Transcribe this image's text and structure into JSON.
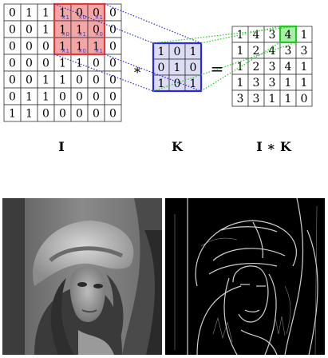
{
  "diagram": {
    "input_matrix": [
      [
        "0",
        "1",
        "1",
        "1",
        "0",
        "0",
        "0"
      ],
      [
        "0",
        "0",
        "1",
        "1",
        "1",
        "0",
        "0"
      ],
      [
        "0",
        "0",
        "0",
        "1",
        "1",
        "1",
        "0"
      ],
      [
        "0",
        "0",
        "0",
        "1",
        "1",
        "0",
        "0"
      ],
      [
        "0",
        "0",
        "1",
        "1",
        "0",
        "0",
        "0"
      ],
      [
        "0",
        "1",
        "1",
        "0",
        "0",
        "0",
        "0"
      ],
      [
        "1",
        "1",
        "0",
        "0",
        "0",
        "0",
        "0"
      ]
    ],
    "highlight_multiplier": "×1",
    "highlight_multiplier_zero": "×0",
    "kernel_matrix": [
      [
        "1",
        "0",
        "1"
      ],
      [
        "0",
        "1",
        "0"
      ],
      [
        "1",
        "0",
        "1"
      ]
    ],
    "output_matrix": [
      [
        "1",
        "4",
        "3",
        "4",
        "1"
      ],
      [
        "1",
        "2",
        "4",
        "3",
        "3"
      ],
      [
        "1",
        "2",
        "3",
        "4",
        "1"
      ],
      [
        "1",
        "3",
        "3",
        "1",
        "1"
      ],
      [
        "3",
        "3",
        "1",
        "1",
        "0"
      ]
    ],
    "operator_convolve": "∗",
    "operator_equals": "=",
    "label_input": "I",
    "label_kernel": "K",
    "label_output": "I ∗ K",
    "colors": {
      "grid_line": "#333333",
      "highlight_fill": "#f4a6a6",
      "highlight_border": "#e03a3a",
      "kernel_fill": "#dcdcf5",
      "kernel_border": "#2b2bd6",
      "output_highlight_fill": "#a8f0a8",
      "output_highlight_border": "#1ec81e",
      "blue_dots": "#2b2bd6",
      "green_dots": "#1ec81e",
      "multiplier_text": "#3a3ad0"
    }
  },
  "images": {
    "left": "grayscale portrait photo (Lena) wearing a wide-brimmed hat with feather",
    "right": "edge-detected version of the same photo, white edges on black"
  }
}
